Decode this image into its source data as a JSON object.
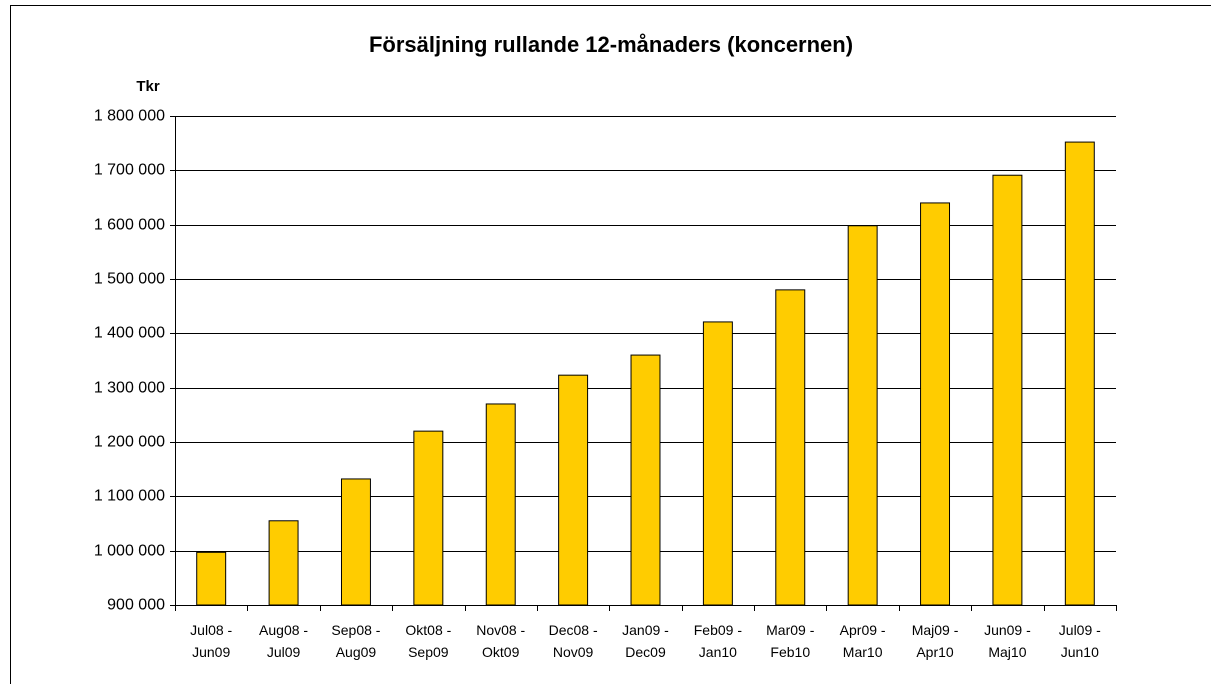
{
  "chart_data": {
    "type": "bar",
    "title": "Försäljning rullande 12-månaders (koncernen)",
    "y_label": "Tkr",
    "categories": [
      "Jul08 -\nJun09",
      "Aug08 -\nJul09",
      "Sep08 -\nAug09",
      "Okt08 -\nSep09",
      "Nov08 -\nOkt09",
      "Dec08 -\nNov09",
      "Jan09 -\nDec09",
      "Feb09 -\nJan10",
      "Mar09 -\nFeb10",
      "Apr09 -\nMar10",
      "Maj09 -\nApr10",
      "Jun09 -\nMaj10",
      "Jul09 -\nJun10"
    ],
    "values": [
      997000,
      1055000,
      1132000,
      1220000,
      1270000,
      1323000,
      1360000,
      1421000,
      1480000,
      1598000,
      1640000,
      1691000,
      1752000
    ],
    "color": "#ffcc00",
    "ylim": [
      900000,
      1800000
    ],
    "yticks": [
      {
        "value": 900000,
        "label": "900 000"
      },
      {
        "value": 1000000,
        "label": "1 000 000"
      },
      {
        "value": 1100000,
        "label": "1 100 000"
      },
      {
        "value": 1200000,
        "label": "1 200 000"
      },
      {
        "value": 1300000,
        "label": "1 300 000"
      },
      {
        "value": 1400000,
        "label": "1 400 000"
      },
      {
        "value": 1500000,
        "label": "1 500 000"
      },
      {
        "value": 1600000,
        "label": "1 600 000"
      },
      {
        "value": 1700000,
        "label": "1 700 000"
      },
      {
        "value": 1800000,
        "label": "1 800 000"
      }
    ],
    "grid": true
  }
}
